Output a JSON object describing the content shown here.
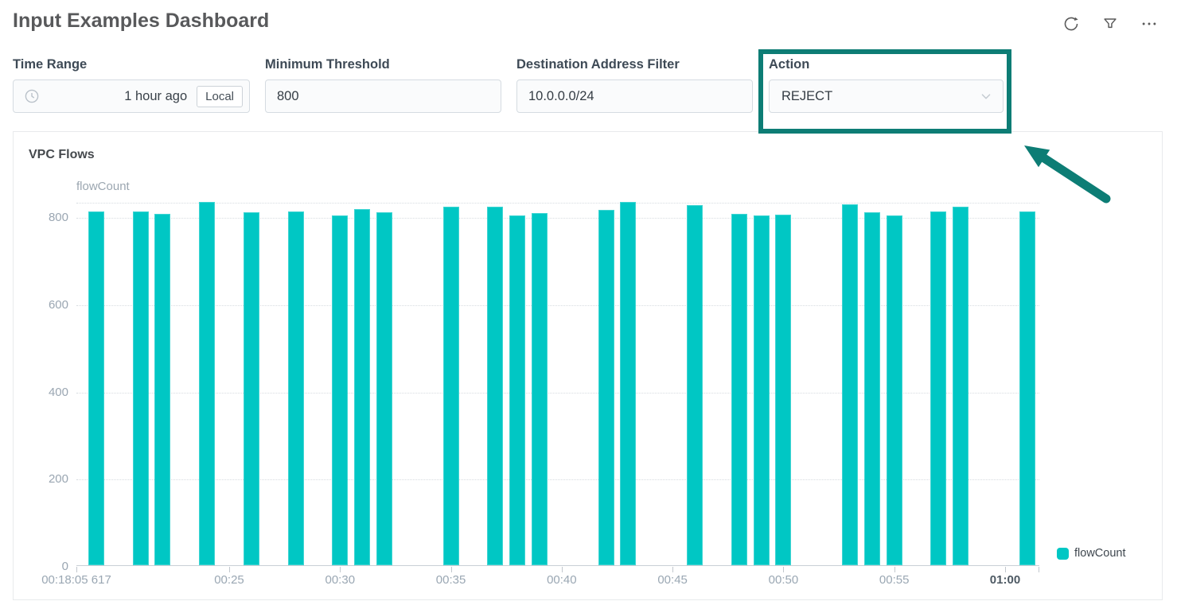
{
  "header": {
    "title": "Input Examples Dashboard",
    "icons": [
      {
        "name": "refresh-icon"
      },
      {
        "name": "filter-icon"
      },
      {
        "name": "more-icon"
      }
    ]
  },
  "controls": {
    "time_range": {
      "label": "Time Range",
      "value": "1 hour ago",
      "local_button": "Local",
      "icon": "clock-icon"
    },
    "minimum_threshold": {
      "label": "Minimum Threshold",
      "value": "800"
    },
    "destination_filter": {
      "label": "Destination Address Filter",
      "value": "10.0.0.0/24"
    },
    "action": {
      "label": "Action",
      "value": "REJECT",
      "icon": "chevron-down-icon"
    }
  },
  "annotation": {
    "type": "highlight-box-with-arrow",
    "target": "Action",
    "color": "#0d7d75"
  },
  "panel": {
    "title": "VPC Flows"
  },
  "chart_data": {
    "type": "bar",
    "title": "VPC Flows",
    "ylabel": "flowCount",
    "series_name": "flowCount",
    "series_color": "#00c7c4",
    "legend": [
      "flowCount"
    ],
    "legend_position": "bottom-right",
    "grid": "dotted-horizontal",
    "ylim": [
      0,
      833
    ],
    "yticks": [
      0,
      200,
      400,
      600,
      800
    ],
    "x_start_label": "00:18:05 617",
    "xticks": [
      "00:25",
      "00:30",
      "00:35",
      "00:40",
      "00:45",
      "00:50",
      "00:55",
      "01:00"
    ],
    "bold_xtick": "01:00",
    "bars": [
      {
        "time": "00:19",
        "value": 811
      },
      {
        "time": "00:21",
        "value": 811
      },
      {
        "time": "00:22",
        "value": 806
      },
      {
        "time": "00:24",
        "value": 833
      },
      {
        "time": "00:26",
        "value": 810
      },
      {
        "time": "00:28",
        "value": 812
      },
      {
        "time": "00:30",
        "value": 802
      },
      {
        "time": "00:31",
        "value": 816
      },
      {
        "time": "00:32",
        "value": 810
      },
      {
        "time": "00:35",
        "value": 822
      },
      {
        "time": "00:37",
        "value": 823
      },
      {
        "time": "00:38",
        "value": 802
      },
      {
        "time": "00:39",
        "value": 808
      },
      {
        "time": "00:42",
        "value": 815
      },
      {
        "time": "00:43",
        "value": 833
      },
      {
        "time": "00:46",
        "value": 826
      },
      {
        "time": "00:48",
        "value": 806
      },
      {
        "time": "00:49",
        "value": 802
      },
      {
        "time": "00:50",
        "value": 804
      },
      {
        "time": "00:53",
        "value": 828
      },
      {
        "time": "00:54",
        "value": 810
      },
      {
        "time": "00:55",
        "value": 802
      },
      {
        "time": "00:57",
        "value": 811
      },
      {
        "time": "00:58",
        "value": 823
      },
      {
        "time": "01:01",
        "value": 812
      }
    ]
  }
}
